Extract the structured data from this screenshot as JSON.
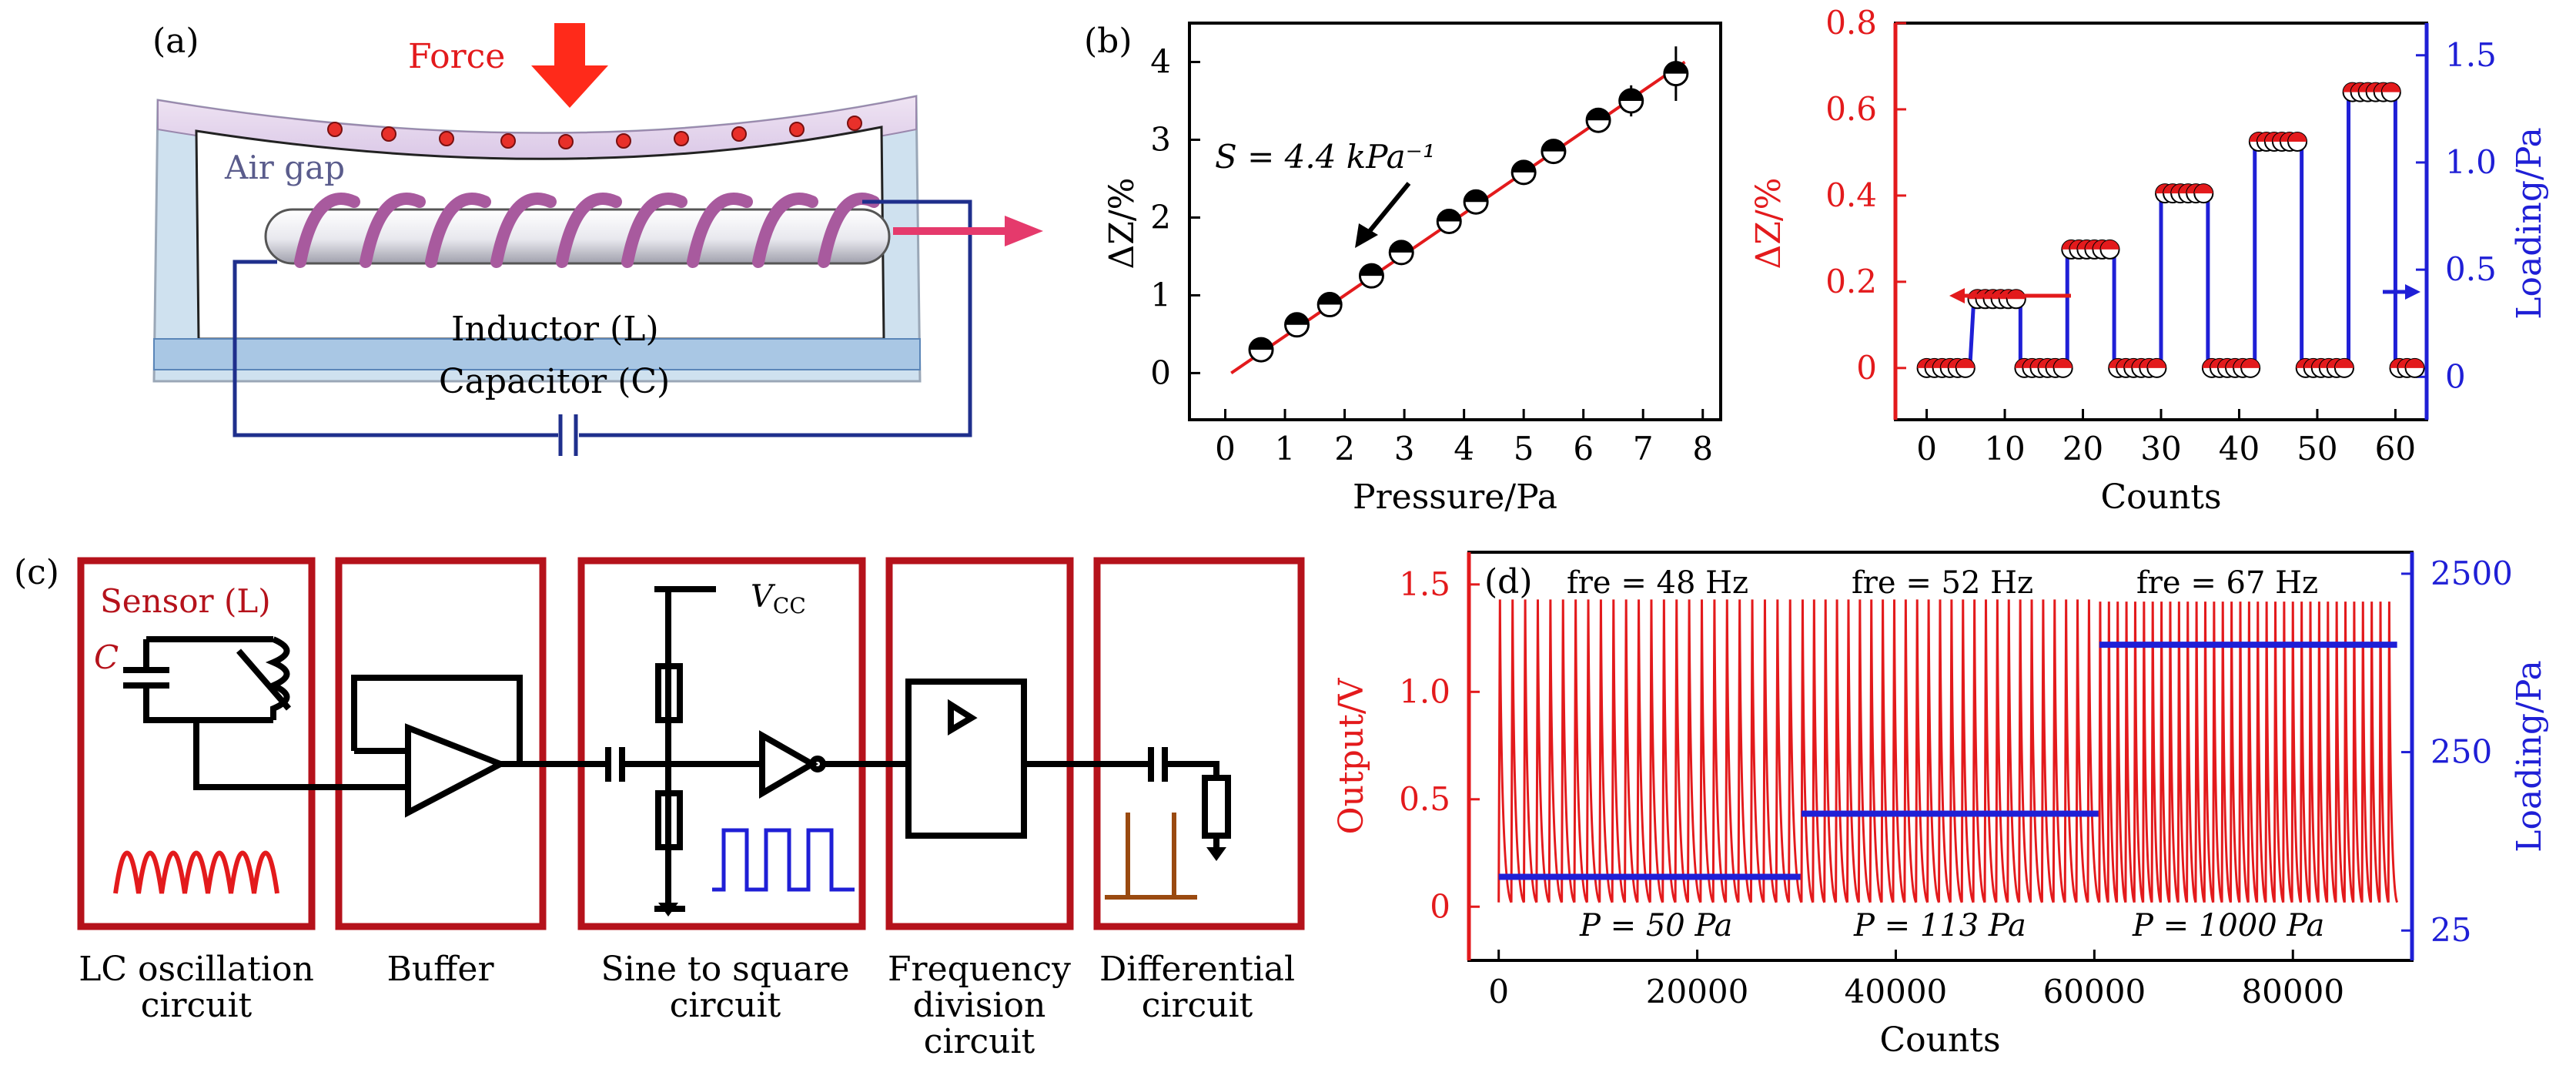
{
  "panel_labels": {
    "a": "(a)",
    "b": "(b)",
    "c": "(c)",
    "d": "(d)"
  },
  "panel_a": {
    "force_label": "Force",
    "air_gap_label": "Air gap",
    "inductor_label": "Inductor (L)",
    "capacitor_label": "Capacitor (C)"
  },
  "panel_c": {
    "sensor_label": "Sensor (L)",
    "cap_label": "C",
    "vcc_label": "V",
    "vcc_sub": "CC",
    "blocks": [
      {
        "line1": "LC oscillation",
        "line2": "circuit",
        "line3": ""
      },
      {
        "line1": "Buffer",
        "line2": "",
        "line3": ""
      },
      {
        "line1": "Sine to square",
        "line2": "circuit",
        "line3": ""
      },
      {
        "line1": "Frequency",
        "line2": "division",
        "line3": "circuit"
      },
      {
        "line1": "Differential",
        "line2": "circuit",
        "line3": ""
      }
    ]
  },
  "colors": {
    "red": "#e31a1c",
    "blue": "#1f1fd6",
    "frame": "#b5121b",
    "black": "#000000"
  },
  "chart_data": [
    {
      "type": "scatter",
      "panel": "b",
      "xlabel": "Pressure/Pa",
      "ylabel": "ΔZ/%",
      "xlim": [
        -0.6,
        8.3
      ],
      "ylim": [
        -0.6,
        4.5
      ],
      "xticks": [
        0,
        1,
        2,
        3,
        4,
        5,
        6,
        7,
        8
      ],
      "yticks": [
        0,
        1,
        2,
        3,
        4
      ],
      "annotation": "S = 4.4 kPa⁻¹",
      "points": [
        {
          "x": 0.6,
          "y": 0.3,
          "err": 0.1
        },
        {
          "x": 1.2,
          "y": 0.62,
          "err": 0.1
        },
        {
          "x": 1.75,
          "y": 0.88,
          "err": 0.1
        },
        {
          "x": 2.45,
          "y": 1.25,
          "err": 0.1
        },
        {
          "x": 2.95,
          "y": 1.55,
          "err": 0.1
        },
        {
          "x": 3.75,
          "y": 1.95,
          "err": 0.1
        },
        {
          "x": 4.2,
          "y": 2.2,
          "err": 0.1
        },
        {
          "x": 5.0,
          "y": 2.58,
          "err": 0.1
        },
        {
          "x": 5.5,
          "y": 2.85,
          "err": 0.1
        },
        {
          "x": 6.25,
          "y": 3.25,
          "err": 0.15
        },
        {
          "x": 6.8,
          "y": 3.5,
          "err": 0.2
        },
        {
          "x": 7.55,
          "y": 3.85,
          "err": 0.35
        }
      ],
      "fit_line": {
        "x": [
          0.1,
          7.7
        ],
        "y": [
          0.0,
          4.0
        ]
      }
    },
    {
      "type": "line",
      "panel": "b-right",
      "xlabel": "Counts",
      "ylabel_left": "ΔZ/%",
      "ylabel_right": "Loading/Pa",
      "xlim": [
        -4,
        64
      ],
      "ylim_left": [
        -0.12,
        0.8
      ],
      "ylim_right": [
        -0.2,
        1.65
      ],
      "xticks": [
        0,
        10,
        20,
        30,
        40,
        50,
        60
      ],
      "yticks_left": [
        "0",
        "0.2",
        "0.4",
        "0.6",
        "0.8"
      ],
      "yticks_left_values": [
        0,
        0.2,
        0.4,
        0.6,
        0.8
      ],
      "yticks_right": [
        "0",
        "0.5",
        "1.0",
        "1.5"
      ],
      "yticks_right_values": [
        0,
        0.5,
        1.0,
        1.5
      ],
      "groups": [
        {
          "x_start": 0,
          "x_end": 5.5,
          "level": 0
        },
        {
          "x_start": 6.5,
          "x_end": 12,
          "level": 0.16
        },
        {
          "x_start": 12.5,
          "x_end": 18,
          "level": 0
        },
        {
          "x_start": 18.5,
          "x_end": 24,
          "level": 0.275
        },
        {
          "x_start": 24.5,
          "x_end": 30,
          "level": 0
        },
        {
          "x_start": 30.5,
          "x_end": 36,
          "level": 0.405
        },
        {
          "x_start": 36.5,
          "x_end": 42,
          "level": 0
        },
        {
          "x_start": 42.5,
          "x_end": 48,
          "level": 0.525
        },
        {
          "x_start": 48.5,
          "x_end": 54,
          "level": 0
        },
        {
          "x_start": 54.5,
          "x_end": 60,
          "level": 0.64
        },
        {
          "x_start": 60.5,
          "x_end": 66,
          "level": 0
        }
      ]
    },
    {
      "type": "line",
      "panel": "d",
      "xlabel": "Counts",
      "ylabel_left": "Output/V",
      "ylabel_right": "Loading/Pa",
      "xlim": [
        -3000,
        92000
      ],
      "ylim_left": [
        -0.25,
        1.65
      ],
      "xticks": [
        0,
        20000,
        40000,
        60000,
        80000
      ],
      "yticks_left": [
        "0",
        "0.5",
        "1.0",
        "1.5"
      ],
      "yticks_left_values": [
        0,
        0.5,
        1.0,
        1.5
      ],
      "yticks_right": [
        "25",
        "250",
        "2500"
      ],
      "yticks_right_values": [
        25,
        250,
        2500
      ],
      "ylim_right_log": [
        17,
        3300
      ],
      "annotations_top": [
        "fre = 48 Hz",
        "fre = 52 Hz",
        "fre = 67 Hz"
      ],
      "annotations_bottom": [
        "P = 50 Pa",
        "P = 113 Pa",
        "P = 1000 Pa"
      ],
      "segments": [
        {
          "x_start": 0,
          "x_end": 30500,
          "pulses": 24,
          "peak": 1.43,
          "loading": 50
        },
        {
          "x_start": 30500,
          "x_end": 60500,
          "pulses": 26,
          "peak": 1.43,
          "loading": 113
        },
        {
          "x_start": 60500,
          "x_end": 90500,
          "pulses": 34,
          "peak": 1.42,
          "loading": 1000
        }
      ]
    }
  ]
}
